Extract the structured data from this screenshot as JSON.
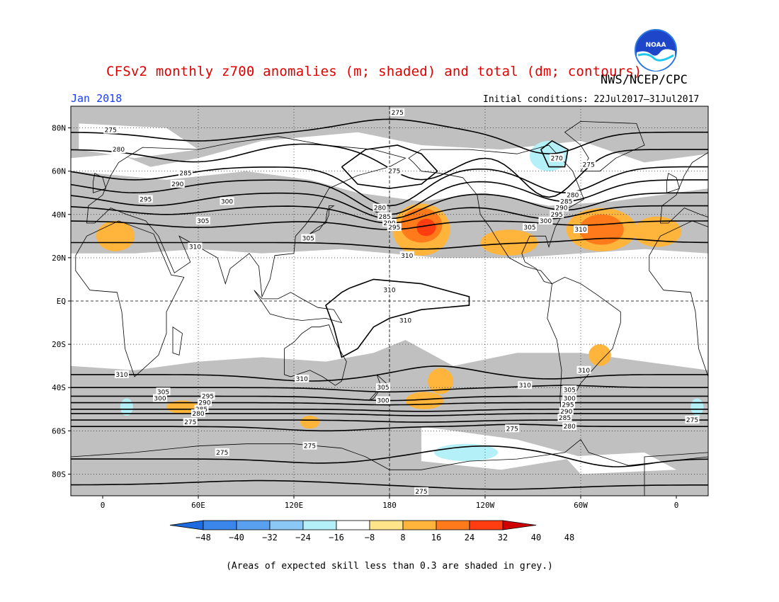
{
  "header": {
    "title": "CFSv2 monthly z700 anomalies (m; shaded) and total (dm; contours)",
    "agency": "NWS/NCEP/CPC",
    "date": "Jan 2018",
    "initial_conditions": "Initial conditions: 22Jul2017–31Jul2017",
    "logo_text": "NOAA"
  },
  "footer": {
    "note": "(Areas of expected skill less than 0.3 are shaded in grey.)"
  },
  "map": {
    "projection": "cylindrical-equidistant",
    "lon_range": [
      -20,
      380
    ],
    "lat_range": [
      -90,
      90
    ],
    "lat_ticks": [
      {
        "lat": 80,
        "label": "80N"
      },
      {
        "lat": 60,
        "label": "60N"
      },
      {
        "lat": 40,
        "label": "40N"
      },
      {
        "lat": 20,
        "label": "20N"
      },
      {
        "lat": 0,
        "label": "EQ"
      },
      {
        "lat": -20,
        "label": "20S"
      },
      {
        "lat": -40,
        "label": "40S"
      },
      {
        "lat": -60,
        "label": "60S"
      },
      {
        "lat": -80,
        "label": "80S"
      }
    ],
    "lon_ticks": [
      {
        "lon": 0,
        "label": "0"
      },
      {
        "lon": 60,
        "label": "60E"
      },
      {
        "lon": 120,
        "label": "120E"
      },
      {
        "lon": 180,
        "label": "180"
      },
      {
        "lon": 240,
        "label": "120W"
      },
      {
        "lon": 300,
        "label": "60W"
      },
      {
        "lon": 360,
        "label": "0"
      }
    ],
    "grey_color": "#c0c0c0"
  },
  "colorbar": {
    "colors": [
      "#1e6be0",
      "#3a86ea",
      "#5aa0f0",
      "#8cc8f6",
      "#b4f0f8",
      "#ffffff",
      "#ffe48a",
      "#ffb43c",
      "#ff7a1a",
      "#ff3d10",
      "#d00000"
    ],
    "labels": [
      "−48",
      "−40",
      "−32",
      "−24",
      "−16",
      "−8",
      "8",
      "16",
      "24",
      "32",
      "40",
      "48"
    ]
  },
  "chart_data": {
    "type": "heatmap",
    "variable": "z700",
    "anomaly_blobs": [
      {
        "lon": 200,
        "lat": 35,
        "rlon": 13,
        "rlat": 8,
        "level": "24"
      },
      {
        "lon": 203,
        "lat": 34,
        "rlon": 6,
        "rlat": 4,
        "level": "32"
      },
      {
        "lon": 200,
        "lat": 33,
        "rlon": 18,
        "rlat": 12,
        "level": "16"
      },
      {
        "lon": 313,
        "lat": 33,
        "rlon": 14,
        "rlat": 7,
        "level": "24"
      },
      {
        "lon": 313,
        "lat": 33,
        "rlon": 22,
        "rlat": 10,
        "level": "16"
      },
      {
        "lon": 255,
        "lat": 27,
        "rlon": 18,
        "rlat": 6,
        "level": "16"
      },
      {
        "lon": 8,
        "lat": 30,
        "rlon": 12,
        "rlat": 7,
        "level": "16"
      },
      {
        "lon": 348,
        "lat": 32,
        "rlon": 15,
        "rlat": 7,
        "level": "16"
      },
      {
        "lon": 50,
        "lat": -49,
        "rlon": 10,
        "rlat": 3,
        "level": "16"
      },
      {
        "lon": 202,
        "lat": -46,
        "rlon": 12,
        "rlat": 4,
        "level": "16"
      },
      {
        "lon": 212,
        "lat": -37,
        "rlon": 8,
        "rlat": 6,
        "level": "16"
      },
      {
        "lon": 312,
        "lat": -25,
        "rlon": 7,
        "rlat": 5,
        "level": "16"
      },
      {
        "lon": 130,
        "lat": -56,
        "rlon": 6,
        "rlat": 3,
        "level": "16"
      },
      {
        "lon": 280,
        "lat": 67,
        "rlon": 12,
        "rlat": 7,
        "level": "−16"
      },
      {
        "lon": 228,
        "lat": -70,
        "rlon": 20,
        "rlat": 4,
        "level": "−16"
      },
      {
        "lon": 15,
        "lat": -49,
        "rlon": 4,
        "rlat": 4,
        "level": "−16"
      },
      {
        "lon": 373,
        "lat": -49,
        "rlon": 4,
        "rlat": 4,
        "level": "−16"
      }
    ],
    "contour_labels": [
      {
        "lon": 185,
        "lat": 87,
        "text": "275"
      },
      {
        "lon": 5,
        "lat": 79,
        "text": "275"
      },
      {
        "lon": 10,
        "lat": 70,
        "text": "280"
      },
      {
        "lon": 52,
        "lat": 59,
        "text": "285"
      },
      {
        "lon": 47,
        "lat": 54,
        "text": "290"
      },
      {
        "lon": 27,
        "lat": 47,
        "text": "295"
      },
      {
        "lon": 63,
        "lat": 37,
        "text": "305"
      },
      {
        "lon": 78,
        "lat": 46,
        "text": "300"
      },
      {
        "lon": 58,
        "lat": 25,
        "text": "310"
      },
      {
        "lon": 183,
        "lat": 60,
        "text": "275"
      },
      {
        "lon": 174,
        "lat": 43,
        "text": "280"
      },
      {
        "lon": 177,
        "lat": 39,
        "text": "285"
      },
      {
        "lon": 180,
        "lat": 36,
        "text": "290"
      },
      {
        "lon": 183,
        "lat": 34,
        "text": "295"
      },
      {
        "lon": 129,
        "lat": 29,
        "text": "305"
      },
      {
        "lon": 191,
        "lat": 21,
        "text": "310"
      },
      {
        "lon": 180,
        "lat": 5,
        "text": "310"
      },
      {
        "lon": 190,
        "lat": -9,
        "text": "310"
      },
      {
        "lon": 285,
        "lat": 66,
        "text": "270"
      },
      {
        "lon": 305,
        "lat": 63,
        "text": "275"
      },
      {
        "lon": 295,
        "lat": 49,
        "text": "280"
      },
      {
        "lon": 291,
        "lat": 46,
        "text": "285"
      },
      {
        "lon": 288,
        "lat": 43,
        "text": "290"
      },
      {
        "lon": 285,
        "lat": 40,
        "text": "295"
      },
      {
        "lon": 278,
        "lat": 37,
        "text": "300"
      },
      {
        "lon": 268,
        "lat": 34,
        "text": "305"
      },
      {
        "lon": 300,
        "lat": 33,
        "text": "310"
      },
      {
        "lon": 12,
        "lat": -34,
        "text": "310"
      },
      {
        "lon": 125,
        "lat": -36,
        "text": "310"
      },
      {
        "lon": 38,
        "lat": -42,
        "text": "305"
      },
      {
        "lon": 36,
        "lat": -45,
        "text": "300"
      },
      {
        "lon": 66,
        "lat": -44,
        "text": "295"
      },
      {
        "lon": 64,
        "lat": -47,
        "text": "290"
      },
      {
        "lon": 62,
        "lat": -50,
        "text": "285"
      },
      {
        "lon": 60,
        "lat": -52,
        "text": "280"
      },
      {
        "lon": 55,
        "lat": -56,
        "text": "275"
      },
      {
        "lon": 176,
        "lat": -40,
        "text": "305"
      },
      {
        "lon": 176,
        "lat": -46,
        "text": "300"
      },
      {
        "lon": 265,
        "lat": -39,
        "text": "310"
      },
      {
        "lon": 302,
        "lat": -32,
        "text": "310"
      },
      {
        "lon": 293,
        "lat": -41,
        "text": "305"
      },
      {
        "lon": 293,
        "lat": -45,
        "text": "300"
      },
      {
        "lon": 292,
        "lat": -48,
        "text": "295"
      },
      {
        "lon": 291,
        "lat": -51,
        "text": "290"
      },
      {
        "lon": 290,
        "lat": -54,
        "text": "285"
      },
      {
        "lon": 293,
        "lat": -58,
        "text": "280"
      },
      {
        "lon": 257,
        "lat": -59,
        "text": "275"
      },
      {
        "lon": 370,
        "lat": -55,
        "text": "275"
      },
      {
        "lon": 75,
        "lat": -70,
        "text": "275"
      },
      {
        "lon": 130,
        "lat": -67,
        "text": "275"
      },
      {
        "lon": 200,
        "lat": -88,
        "text": "275"
      }
    ]
  }
}
